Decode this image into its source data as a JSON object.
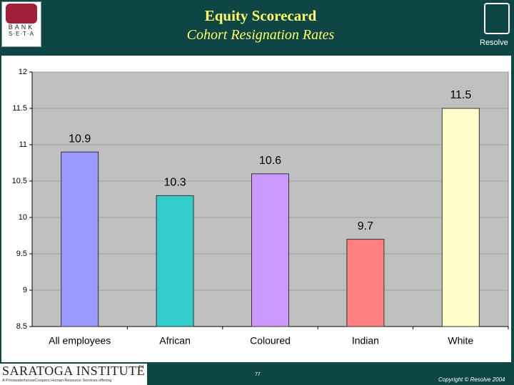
{
  "header": {
    "logo_top": "BANK",
    "logo_bottom": "S·E·T·A",
    "brand": "Resolve"
  },
  "footer": {
    "institute": "SARATOGA INSTITUTE",
    "tm": "TM",
    "tagline": "A PricewaterhouseCoopers Human Resource Services offering",
    "page": "77",
    "copyright": "Copyright © Resolve 2004"
  },
  "chart_data": {
    "type": "bar",
    "title": "Equity Scorecard",
    "subtitle": "Cohort Resignation Rates",
    "categories": [
      "All employees",
      "African",
      "Coloured",
      "Indian",
      "White"
    ],
    "values": [
      10.9,
      10.3,
      10.6,
      9.7,
      11.5
    ],
    "colors": [
      "#9999ff",
      "#33cccc",
      "#cc99ff",
      "#ff8080",
      "#ffffcc"
    ],
    "ylim": [
      8.5,
      12
    ],
    "yticks": [
      8.5,
      9,
      9.5,
      10,
      10.5,
      11,
      11.5,
      12
    ],
    "grid": true
  }
}
